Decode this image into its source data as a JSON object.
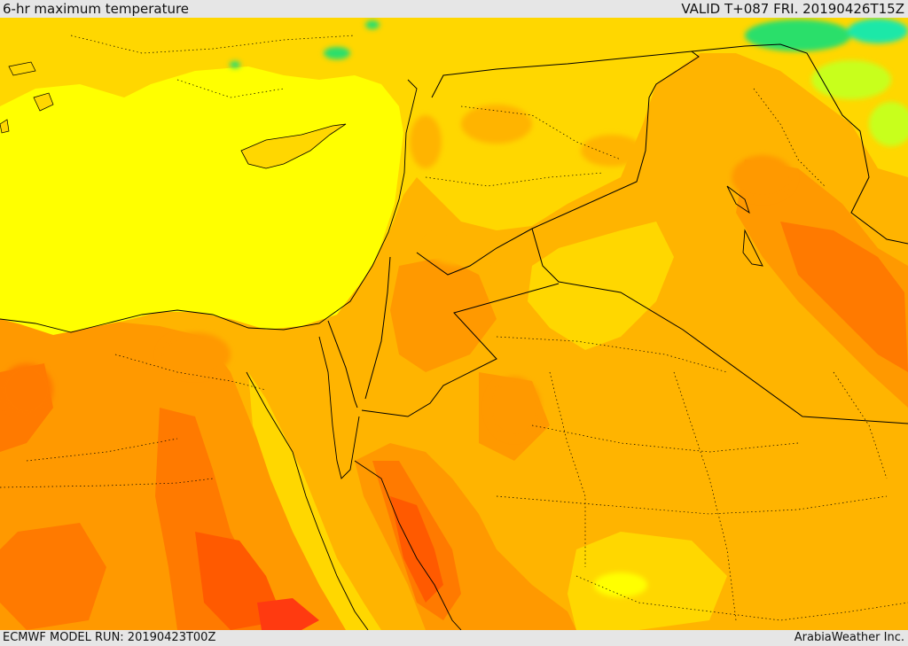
{
  "header": {
    "title": "6-hr maximum temperature",
    "valid_time": "VALID T+087 FRI. 20190426T15Z"
  },
  "footer": {
    "model_run": "ECMWF MODEL RUN: 20190423T00Z",
    "credit": "ArabiaWeather Inc."
  },
  "colors": {
    "sea": "#ffff00",
    "warm_base": "#ffb400",
    "yellow_orange": "#ffd700",
    "orange": "#ff9900",
    "dark_orange": "#ff7a00",
    "red_orange": "#ff5a00",
    "red": "#ff3a10",
    "yellow_green": "#c8ff1a",
    "green": "#2adf6a",
    "cyan": "#1ee8a8",
    "border_line": "#000000"
  }
}
